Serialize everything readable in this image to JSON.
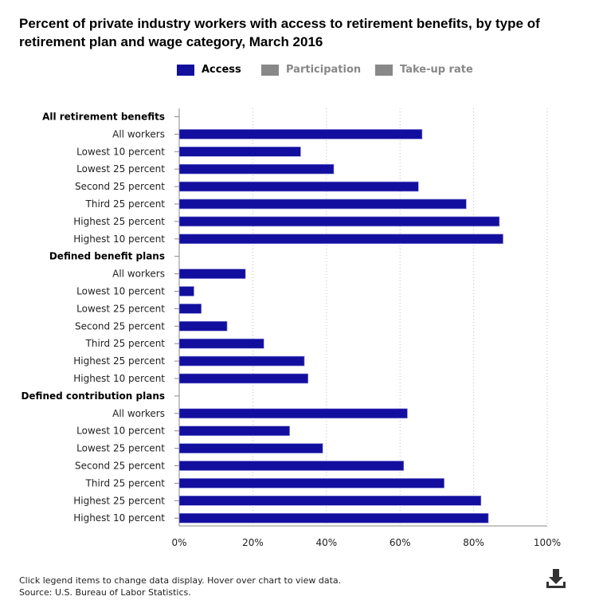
{
  "chart_data": {
    "type": "bar",
    "orientation": "horizontal",
    "title": "Percent of private industry workers with access to retirement benefits, by type of retirement plan and wage category, March 2016",
    "groups": [
      {
        "label": "All retirement benefits",
        "categories": [
          "All workers",
          "Lowest 10 percent",
          "Lowest 25 percent",
          "Second 25 percent",
          "Third 25 percent",
          "Highest 25 percent",
          "Highest 10 percent"
        ],
        "values": [
          66,
          33,
          42,
          65,
          78,
          87,
          88
        ]
      },
      {
        "label": "Defined benefit plans",
        "categories": [
          "All workers",
          "Lowest 10 percent",
          "Lowest 25 percent",
          "Second 25 percent",
          "Third 25 percent",
          "Highest 25 percent",
          "Highest 10 percent"
        ],
        "values": [
          18,
          4,
          6,
          13,
          23,
          34,
          35
        ]
      },
      {
        "label": "Defined contribution plans",
        "categories": [
          "All workers",
          "Lowest 10 percent",
          "Lowest 25 percent",
          "Second 25 percent",
          "Third 25 percent",
          "Highest 25 percent",
          "Highest 10 percent"
        ],
        "values": [
          62,
          30,
          39,
          61,
          72,
          82,
          84
        ]
      }
    ],
    "series": [
      {
        "name": "Access",
        "active": true,
        "color": "#130f9e"
      },
      {
        "name": "Participation",
        "active": false,
        "color": "#888888"
      },
      {
        "name": "Take-up rate",
        "active": false,
        "color": "#888888"
      }
    ],
    "xlim": [
      0,
      100
    ],
    "xticks": [
      "0%",
      "20%",
      "40%",
      "60%",
      "80%",
      "100%"
    ],
    "grid": true,
    "legend_position": "top"
  },
  "footer": {
    "note": "Click legend items to change data display. Hover over chart to view data.",
    "source": "Source: U.S. Bureau of Labor Statistics."
  },
  "icons": {
    "download": "download-icon"
  }
}
